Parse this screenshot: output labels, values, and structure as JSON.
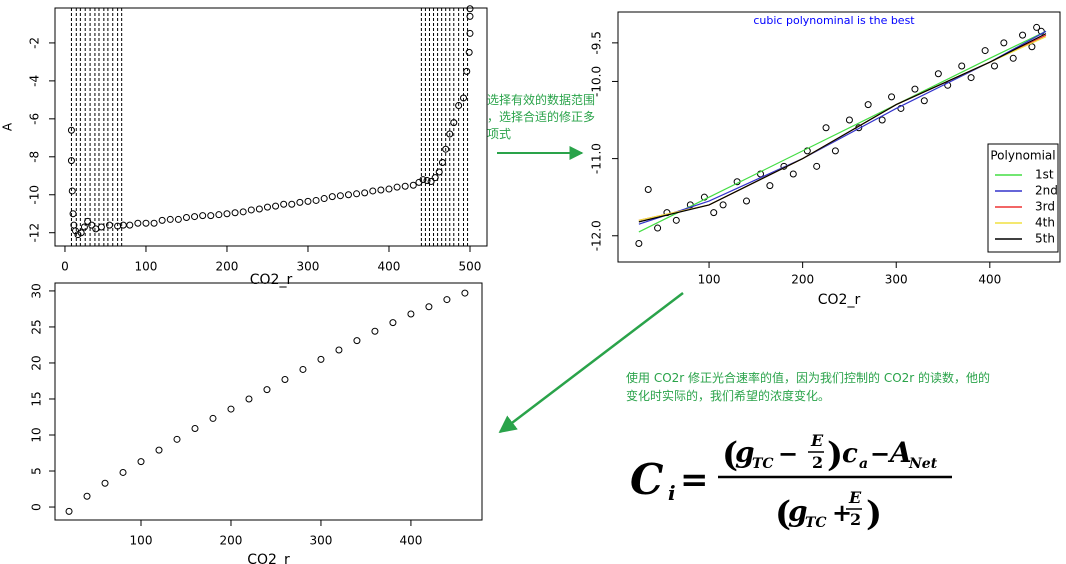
{
  "chart_data": [
    {
      "type": "scatter",
      "xlabel": "CO2_r",
      "ylabel": "A",
      "xlim": [
        -12.3,
        521
      ],
      "ylim": [
        -12.7,
        -0.16
      ],
      "xticks": [
        0,
        100,
        200,
        300,
        400,
        500
      ],
      "yticks": [
        -12,
        -10,
        -8,
        -6,
        -4,
        -2
      ],
      "vlines": [
        8,
        14,
        19,
        25,
        31,
        37,
        42,
        48,
        53,
        59,
        65,
        70,
        440,
        445,
        450,
        455,
        460,
        465,
        470,
        475,
        480,
        486,
        492,
        497
      ],
      "series": [
        {
          "color": "#000000",
          "x": [
            8,
            8,
            9,
            10,
            11,
            13,
            16,
            20,
            24,
            28,
            33,
            38,
            45,
            55,
            65,
            72,
            80,
            90,
            100,
            110,
            120,
            130,
            140,
            150,
            160,
            170,
            180,
            190,
            200,
            210,
            220,
            230,
            240,
            250,
            260,
            270,
            280,
            290,
            300,
            310,
            320,
            330,
            340,
            350,
            360,
            370,
            380,
            390,
            400,
            410,
            420,
            430,
            437,
            442,
            447,
            452,
            457,
            462,
            466,
            470,
            475,
            480,
            486,
            492,
            496,
            499,
            500,
            500,
            500
          ],
          "values": [
            -6.6,
            -8.2,
            -9.8,
            -11,
            -11.6,
            -11.9,
            -12.1,
            -12.0,
            -11.7,
            -11.4,
            -11.6,
            -11.8,
            -11.7,
            -11.6,
            -11.65,
            -11.6,
            -11.6,
            -11.5,
            -11.5,
            -11.5,
            -11.35,
            -11.3,
            -11.3,
            -11.2,
            -11.15,
            -11.1,
            -11.1,
            -11.05,
            -11.0,
            -10.95,
            -10.9,
            -10.8,
            -10.75,
            -10.65,
            -10.6,
            -10.5,
            -10.5,
            -10.4,
            -10.35,
            -10.3,
            -10.2,
            -10.1,
            -10.05,
            -10.0,
            -9.95,
            -9.9,
            -9.8,
            -9.75,
            -9.7,
            -9.6,
            -9.55,
            -9.5,
            -9.35,
            -9.2,
            -9.25,
            -9.3,
            -9.1,
            -8.8,
            -8.3,
            -7.6,
            -6.8,
            -6.2,
            -5.3,
            -4.9,
            -3.5,
            -2.5,
            -1.5,
            -0.6,
            -0.2
          ]
        }
      ]
    },
    {
      "type": "scatter",
      "title": "cubic polynominal is the best",
      "title_color": "#0000ff",
      "xlabel": "CO2_r",
      "xlim": [
        2.7,
        475
      ],
      "ylim": [
        -12.34,
        -9.1
      ],
      "xticks": [
        100,
        200,
        300,
        400
      ],
      "yticks": [
        {
          "value": -12,
          "label": "-12.0"
        },
        {
          "value": -11,
          "label": "-11.0"
        },
        {
          "value": -10,
          "label": "-10.0"
        },
        -9.5
      ],
      "legend": {
        "title": "Polynomial",
        "position": "bottom-right"
      },
      "series": [
        {
          "color": "#000000",
          "x": [
            25,
            35,
            45,
            55,
            65,
            80,
            95,
            105,
            115,
            130,
            140,
            155,
            165,
            180,
            190,
            205,
            215,
            225,
            235,
            250,
            260,
            270,
            285,
            295,
            305,
            320,
            330,
            345,
            355,
            370,
            380,
            395,
            405,
            415,
            425,
            435,
            445,
            450,
            455
          ],
          "values": [
            -12.1,
            -11.4,
            -11.9,
            -11.7,
            -11.8,
            -11.6,
            -11.5,
            -11.7,
            -11.6,
            -11.3,
            -11.55,
            -11.2,
            -11.35,
            -11.1,
            -11.2,
            -10.9,
            -11.1,
            -10.6,
            -10.9,
            -10.5,
            -10.6,
            -10.3,
            -10.5,
            -10.2,
            -10.35,
            -10.1,
            -10.25,
            -9.9,
            -10.05,
            -9.8,
            -9.95,
            -9.6,
            -9.8,
            -9.5,
            -9.7,
            -9.4,
            -9.55,
            -9.3,
            -9.35
          ]
        },
        {
          "name": "1st",
          "color": "#44dd44",
          "x": [
            25,
            100,
            200,
            300,
            400,
            460
          ],
          "values": [
            -11.95,
            -11.5,
            -10.9,
            -10.3,
            -9.7,
            -9.35
          ]
        },
        {
          "name": "2nd",
          "color": "#3333cc",
          "x": [
            25,
            100,
            200,
            300,
            400,
            460
          ],
          "values": [
            -11.85,
            -11.55,
            -11.0,
            -10.35,
            -9.75,
            -9.35
          ]
        },
        {
          "name": "3rd",
          "color": "#ee3333",
          "x": [
            25,
            100,
            200,
            300,
            400,
            460
          ],
          "values": [
            -11.8,
            -11.6,
            -11.0,
            -10.3,
            -9.75,
            -9.4
          ]
        },
        {
          "name": "4th",
          "color": "#f0e040",
          "x": [
            25,
            100,
            200,
            300,
            400,
            460
          ],
          "values": [
            -11.8,
            -11.6,
            -11.0,
            -10.3,
            -9.75,
            -9.42
          ]
        },
        {
          "name": "5th",
          "color": "#000000",
          "x": [
            25,
            100,
            200,
            300,
            400,
            460
          ],
          "values": [
            -11.82,
            -11.6,
            -11.0,
            -10.3,
            -9.75,
            -9.38
          ]
        }
      ]
    },
    {
      "type": "scatter",
      "xlabel": "CO2_r",
      "xlim": [
        4.4,
        479
      ],
      "ylim": [
        -1.8,
        31.1
      ],
      "xticks": [
        100,
        200,
        300,
        400
      ],
      "yticks": [
        0,
        5,
        10,
        15,
        20,
        25,
        30
      ],
      "series": [
        {
          "color": "#000000",
          "x": [
            20,
            40,
            60,
            80,
            100,
            120,
            140,
            160,
            180,
            200,
            220,
            240,
            260,
            280,
            300,
            320,
            340,
            360,
            380,
            400,
            420,
            440,
            460
          ],
          "values": [
            -0.6,
            1.5,
            3.3,
            4.8,
            6.3,
            7.9,
            9.4,
            10.9,
            12.3,
            13.6,
            15.0,
            16.3,
            17.7,
            19.1,
            20.5,
            21.8,
            23.1,
            24.4,
            25.6,
            26.8,
            27.8,
            28.8,
            29.7
          ]
        }
      ]
    }
  ],
  "annotations": {
    "range_note": [
      "选择有效的数据范围",
      "，选择合适的修正多",
      "项式"
    ],
    "co2_note": [
      "使用 CO2r 修正光合速率的值，因为我们控制的 CO2r 的读数，他的",
      "变化时实际的，我们希望的浓度变化。"
    ],
    "formula": [
      "C",
      "i",
      "=",
      "(",
      "g",
      "TC",
      "−",
      "E",
      "2",
      ")",
      "c",
      "a",
      "−",
      "A",
      "Net",
      "(",
      "g",
      "TC",
      "+",
      "E",
      "2",
      ")"
    ]
  }
}
